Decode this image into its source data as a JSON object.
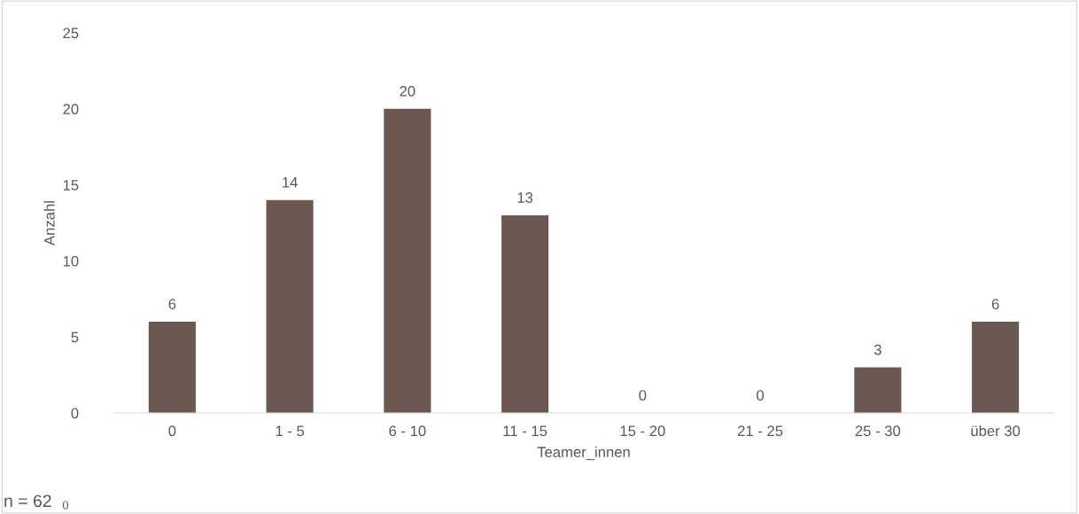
{
  "chart_data": {
    "type": "bar",
    "xlabel": "Teamer_innen",
    "ylabel": "Anzahl",
    "categories": [
      "0",
      "1 - 5",
      "6 - 10",
      "11 - 15",
      "15 - 20",
      "21 - 25",
      "25 - 30",
      "über 30"
    ],
    "values": [
      6,
      14,
      20,
      13,
      0,
      0,
      3,
      6
    ],
    "color": "#6b5850",
    "ylim": [
      0,
      25
    ],
    "yticks": [
      0,
      5,
      10,
      15,
      20,
      25
    ],
    "grid": false,
    "data_labels": true,
    "annotations": [
      "0",
      "n = 62"
    ]
  }
}
